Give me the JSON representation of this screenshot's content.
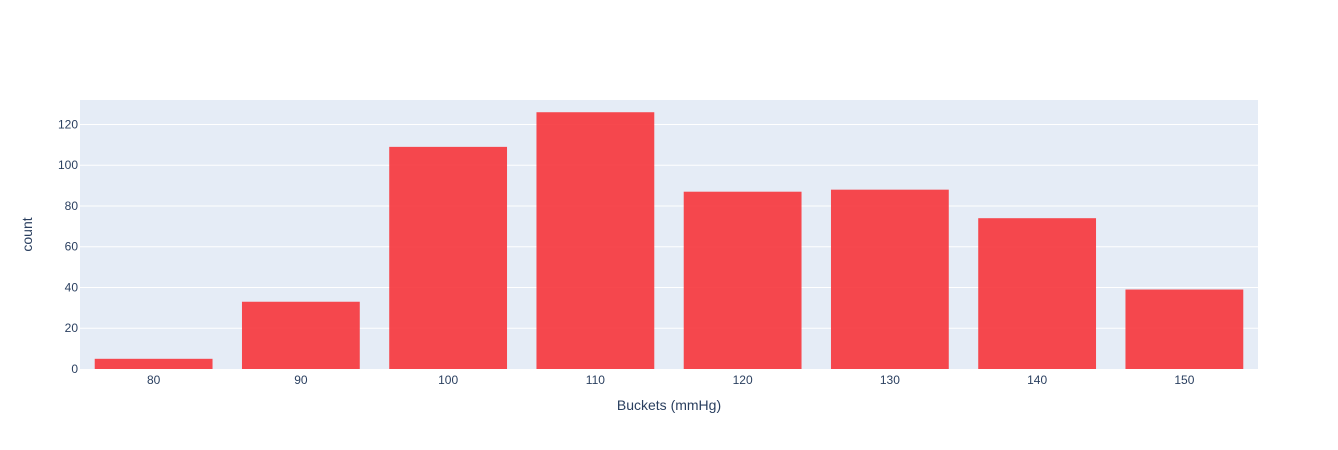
{
  "chart_data": {
    "type": "bar",
    "categories": [
      "80",
      "90",
      "100",
      "110",
      "120",
      "130",
      "140",
      "150"
    ],
    "values": [
      5,
      33,
      109,
      126,
      87,
      88,
      74,
      39
    ],
    "xlabel": "Buckets (mmHg)",
    "ylabel": "count",
    "ylim": [
      0,
      132
    ],
    "yticks": [
      0,
      20,
      40,
      60,
      80,
      100,
      120
    ],
    "grid": true,
    "colors": {
      "bar": "#f6353b",
      "plot_background": "#e5ecf6",
      "grid": "#ffffff",
      "text": "#2a3f5f"
    }
  }
}
